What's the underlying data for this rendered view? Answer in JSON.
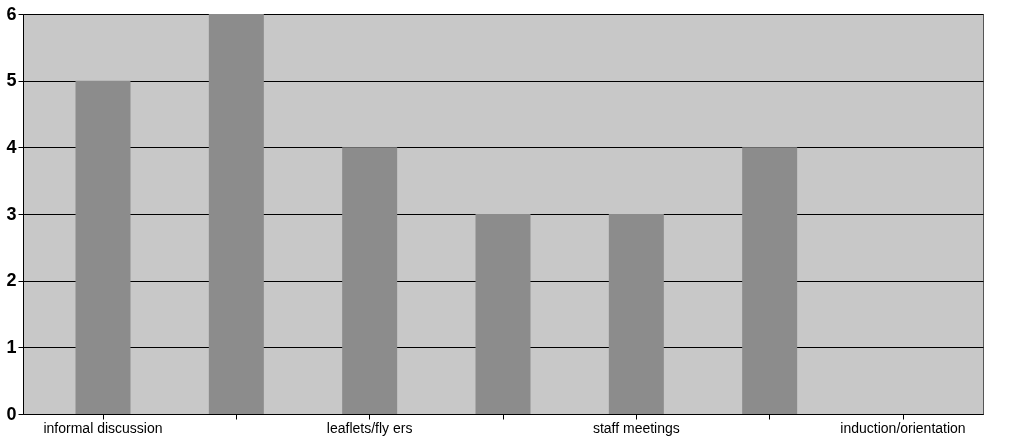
{
  "chart_data": {
    "type": "bar",
    "categories": [
      "informal discussion",
      null,
      "leaflets/fly ers",
      null,
      "staff meetings",
      null,
      "induction/orientation"
    ],
    "values": [
      5,
      6,
      4,
      3,
      3,
      4,
      0
    ],
    "color": "#8c8c8c",
    "ylim": [
      0,
      6
    ],
    "yticks": [
      0,
      1,
      2,
      3,
      4,
      5,
      6
    ],
    "grid": "y"
  }
}
